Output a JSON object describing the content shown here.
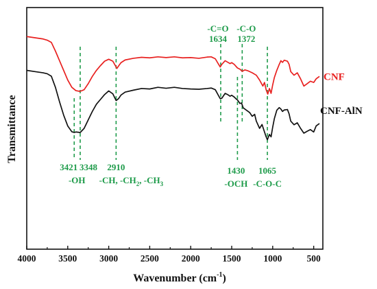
{
  "chart_data": {
    "type": "line",
    "xlabel": "Wavenumber (cm",
    "xlabel_sup": "-1",
    "xlabel_end": ")",
    "ylabel": "Transmittance",
    "xlim": [
      4000,
      400
    ],
    "x_reversed": true,
    "y_ticks_shown": false,
    "x_ticks": [
      4000,
      3500,
      3000,
      2500,
      2000,
      1500,
      1000,
      500
    ],
    "x_tick_labels": [
      "4000",
      "3500",
      "3000",
      "2500",
      "2000",
      "1500",
      "1000",
      "500"
    ],
    "ylim": [
      0,
      100
    ],
    "series": [
      {
        "name": "CNF",
        "color": "#e8201f",
        "points": [
          [
            4000,
            88
          ],
          [
            3900,
            87.5
          ],
          [
            3800,
            87
          ],
          [
            3750,
            86.5
          ],
          [
            3700,
            85.6
          ],
          [
            3650,
            82
          ],
          [
            3600,
            78
          ],
          [
            3550,
            74
          ],
          [
            3500,
            70
          ],
          [
            3450,
            67
          ],
          [
            3400,
            65.6
          ],
          [
            3350,
            65.3
          ],
          [
            3300,
            66
          ],
          [
            3250,
            68.5
          ],
          [
            3200,
            71.5
          ],
          [
            3150,
            74
          ],
          [
            3100,
            76
          ],
          [
            3050,
            77.8
          ],
          [
            3000,
            78.6
          ],
          [
            2950,
            77.8
          ],
          [
            2920,
            76
          ],
          [
            2900,
            74.8
          ],
          [
            2880,
            75.8
          ],
          [
            2850,
            77.2
          ],
          [
            2800,
            78.3
          ],
          [
            2700,
            79
          ],
          [
            2600,
            79.4
          ],
          [
            2500,
            79.2
          ],
          [
            2400,
            79.6
          ],
          [
            2300,
            79.3
          ],
          [
            2200,
            79.6
          ],
          [
            2100,
            79.2
          ],
          [
            2000,
            79.3
          ],
          [
            1900,
            79
          ],
          [
            1800,
            79.5
          ],
          [
            1750,
            79.6
          ],
          [
            1700,
            78.8
          ],
          [
            1660,
            76.5
          ],
          [
            1640,
            75.4
          ],
          [
            1620,
            76.5
          ],
          [
            1580,
            78
          ],
          [
            1550,
            77.4
          ],
          [
            1520,
            76.8
          ],
          [
            1500,
            77.2
          ],
          [
            1470,
            76.5
          ],
          [
            1430,
            75
          ],
          [
            1400,
            74.5
          ],
          [
            1372,
            73.6
          ],
          [
            1340,
            74.2
          ],
          [
            1300,
            73.8
          ],
          [
            1250,
            73
          ],
          [
            1200,
            72
          ],
          [
            1160,
            70
          ],
          [
            1120,
            67.5
          ],
          [
            1100,
            69
          ],
          [
            1080,
            66
          ],
          [
            1060,
            64.2
          ],
          [
            1040,
            66.5
          ],
          [
            1020,
            64.5
          ],
          [
            1000,
            68
          ],
          [
            980,
            71
          ],
          [
            950,
            74
          ],
          [
            920,
            76.5
          ],
          [
            900,
            78
          ],
          [
            880,
            77.3
          ],
          [
            860,
            78.2
          ],
          [
            820,
            77.8
          ],
          [
            800,
            76.5
          ],
          [
            780,
            73.5
          ],
          [
            740,
            72
          ],
          [
            700,
            73
          ],
          [
            660,
            70.5
          ],
          [
            620,
            67.5
          ],
          [
            580,
            68.5
          ],
          [
            540,
            69.5
          ],
          [
            500,
            69
          ],
          [
            470,
            70.5
          ],
          [
            430,
            71.5
          ]
        ]
      },
      {
        "name": "CNF-AlN",
        "color": "#111111",
        "points": [
          [
            4000,
            74
          ],
          [
            3900,
            73.5
          ],
          [
            3800,
            73
          ],
          [
            3750,
            72.6
          ],
          [
            3700,
            71.6
          ],
          [
            3650,
            67
          ],
          [
            3600,
            61
          ],
          [
            3550,
            55.5
          ],
          [
            3500,
            51
          ],
          [
            3450,
            48.6
          ],
          [
            3421,
            48.3
          ],
          [
            3400,
            48.5
          ],
          [
            3348,
            48.3
          ],
          [
            3300,
            50
          ],
          [
            3250,
            53.5
          ],
          [
            3200,
            57
          ],
          [
            3150,
            60
          ],
          [
            3100,
            62
          ],
          [
            3050,
            64
          ],
          [
            3000,
            65.5
          ],
          [
            2950,
            64.3
          ],
          [
            2910,
            61.5
          ],
          [
            2880,
            62.3
          ],
          [
            2850,
            63.8
          ],
          [
            2800,
            65
          ],
          [
            2700,
            65.8
          ],
          [
            2600,
            66.5
          ],
          [
            2500,
            66.3
          ],
          [
            2400,
            67
          ],
          [
            2300,
            66.6
          ],
          [
            2200,
            67
          ],
          [
            2100,
            66.5
          ],
          [
            2000,
            66.3
          ],
          [
            1900,
            66.2
          ],
          [
            1800,
            66.5
          ],
          [
            1750,
            66.7
          ],
          [
            1700,
            66
          ],
          [
            1660,
            63.5
          ],
          [
            1640,
            62.3
          ],
          [
            1620,
            62.5
          ],
          [
            1580,
            64.5
          ],
          [
            1550,
            64
          ],
          [
            1520,
            63.3
          ],
          [
            1500,
            63.7
          ],
          [
            1470,
            63
          ],
          [
            1440,
            62
          ],
          [
            1430,
            61.8
          ],
          [
            1400,
            60.3
          ],
          [
            1380,
            60.5
          ],
          [
            1360,
            58.5
          ],
          [
            1320,
            57.5
          ],
          [
            1280,
            56.5
          ],
          [
            1250,
            55
          ],
          [
            1220,
            55.8
          ],
          [
            1200,
            53
          ],
          [
            1160,
            50
          ],
          [
            1130,
            51.6
          ],
          [
            1100,
            48.5
          ],
          [
            1080,
            46.5
          ],
          [
            1065,
            45.3
          ],
          [
            1040,
            47.5
          ],
          [
            1020,
            46.5
          ],
          [
            1000,
            50.5
          ],
          [
            980,
            54
          ],
          [
            950,
            57.5
          ],
          [
            920,
            58.6
          ],
          [
            900,
            58
          ],
          [
            880,
            57
          ],
          [
            860,
            57.6
          ],
          [
            820,
            57.8
          ],
          [
            800,
            56
          ],
          [
            780,
            53
          ],
          [
            740,
            51.5
          ],
          [
            700,
            52.3
          ],
          [
            660,
            50
          ],
          [
            620,
            48
          ],
          [
            580,
            48.8
          ],
          [
            540,
            49.5
          ],
          [
            500,
            48.5
          ],
          [
            470,
            51
          ],
          [
            430,
            52
          ]
        ]
      }
    ],
    "annotations": [
      {
        "x": 3421,
        "label_top": "3421",
        "label_bottom": "-OH",
        "side": "below"
      },
      {
        "x": 3348,
        "label_top": "3348",
        "label_bottom": "",
        "side": "below"
      },
      {
        "x": 2910,
        "label_top": "2910",
        "label_bottom": "-CH, -CH",
        "side": "below"
      },
      {
        "x": 1634,
        "label_top": "-C=O",
        "label_bottom": "1634",
        "side": "above"
      },
      {
        "x": 1372,
        "label_top": "-C-O",
        "label_bottom": "1372",
        "side": "above"
      },
      {
        "x": 1430,
        "label_top": "1430",
        "label_bottom": "-OCH",
        "side": "below"
      },
      {
        "x": 1065,
        "label_top": "1065",
        "label_bottom": "-C-O-C",
        "side": "below"
      }
    ],
    "annotation_color": "#1e9b4a",
    "ch_label": {
      "prefix": "-CH, -CH",
      "sub1": "2",
      "mid": ", -CH",
      "sub2": "3"
    }
  }
}
